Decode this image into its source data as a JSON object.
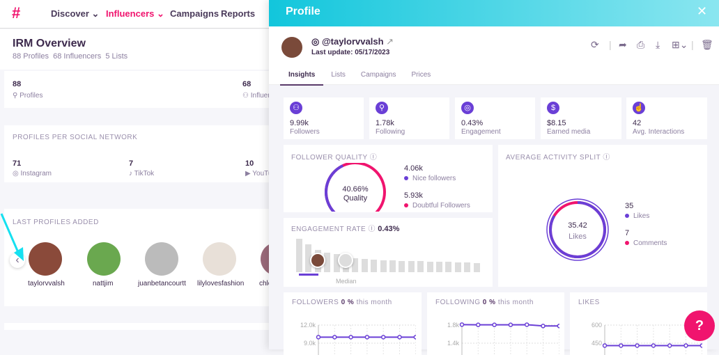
{
  "nav": {
    "items": [
      "Discover",
      "Influencers",
      "Campaigns",
      "Reports"
    ],
    "active": "Influencers"
  },
  "overview": {
    "title": "IRM Overview",
    "profiles": "88 Profiles",
    "influencers": "68 Influencers",
    "lists": "5 Lists"
  },
  "counts": [
    {
      "value": "88",
      "label": "Profiles"
    },
    {
      "value": "68",
      "label": "Influencers"
    }
  ],
  "networks": {
    "title": "PROFILES PER SOCIAL NETWORK",
    "items": [
      {
        "value": "71",
        "label": "Instagram"
      },
      {
        "value": "7",
        "label": "TikTok"
      },
      {
        "value": "10",
        "label": "YouTube"
      }
    ]
  },
  "last_profiles": {
    "title": "LAST PROFILES ADDED",
    "items": [
      "taylorvvalsh",
      "nattjim",
      "juanbetancourtt",
      "lilylovesfashion",
      "chloe"
    ]
  },
  "profile": {
    "header": "Profile",
    "handle": "@taylorvvalsh",
    "last_update": "Last update: 05/17/2023",
    "tabs": [
      "Insights",
      "Lists",
      "Campaigns",
      "Prices"
    ],
    "active_tab": "Insights",
    "stats": [
      {
        "value": "9.99k",
        "label": "Followers",
        "icon": "users-icon"
      },
      {
        "value": "1.78k",
        "label": "Following",
        "icon": "user-follow-icon"
      },
      {
        "value": "0.43%",
        "label": "Engagement",
        "icon": "target-icon"
      },
      {
        "value": "$8.15",
        "label": "Earned media",
        "icon": "dollar-icon"
      },
      {
        "value": "42",
        "label": "Avg. Interactions",
        "icon": "hand-pointer-icon"
      }
    ],
    "follower_quality": {
      "title": "FOLLOWER QUALITY",
      "percent": "40.66%",
      "label": "Quality",
      "nice": "4.06k",
      "nice_label": "Nice followers",
      "doubtful": "5.93k",
      "doubtful_label": "Doubtful Followers",
      "fraction": 0.4066
    },
    "activity": {
      "title": "AVERAGE ACTIVITY SPLIT",
      "center_value": "35.42",
      "center_label": "Likes",
      "likes": "35",
      "likes_label": "Likes",
      "comments": "7",
      "comments_label": "Comments"
    },
    "engagement": {
      "title": "ENGAGEMENT RATE",
      "value": "0.43%",
      "median": "Median"
    },
    "colors": {
      "purple": "#6a3fd6",
      "pink": "#f0146e",
      "cyan": "#12c6dc"
    }
  },
  "chart_data": [
    {
      "type": "line",
      "title": "FOLLOWERS",
      "change": "0 %",
      "suffix": "this month",
      "ytick_labels": [
        "12.0k",
        "9.0k"
      ],
      "yticks": [
        12000,
        9000
      ],
      "values": [
        10000,
        10000,
        10000,
        10000,
        10000,
        10000,
        10000
      ]
    },
    {
      "type": "line",
      "title": "FOLLOWING",
      "change": "0 %",
      "suffix": "this month",
      "ytick_labels": [
        "1.8k",
        "1.4k"
      ],
      "yticks": [
        1800,
        1400
      ],
      "values": [
        1810,
        1805,
        1805,
        1805,
        1808,
        1780,
        1780
      ]
    },
    {
      "type": "line",
      "title": "LIKES",
      "change": "",
      "suffix": "",
      "ytick_labels": [
        "600",
        "450"
      ],
      "yticks": [
        600,
        450
      ],
      "values": [
        430,
        430,
        430,
        430,
        430,
        430,
        430
      ]
    }
  ]
}
